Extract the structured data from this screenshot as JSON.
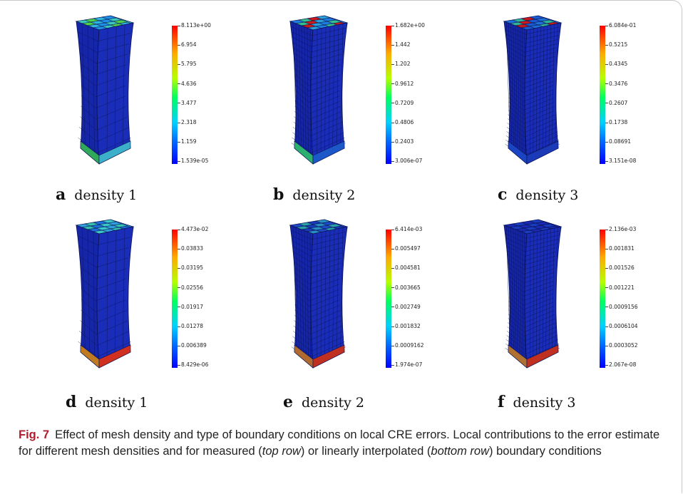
{
  "panels": [
    {
      "letter": "a",
      "label": "density 1",
      "ticks": [
        "8.113e+00",
        "6.954",
        "5.795",
        "4.636",
        "3.477",
        "2.318",
        "1.159",
        "1.539e-05"
      ],
      "grid": 4,
      "top_colors": [
        "#3ac8c0",
        "#4fd24a",
        "#2fb5e0",
        "#1f8ee6"
      ],
      "bottom_colors": [
        "#2fa85a",
        "#3bb0c8"
      ]
    },
    {
      "letter": "b",
      "label": "density 2",
      "ticks": [
        "1.682e+00",
        "1.442",
        "1.202",
        "0.9612",
        "0.7209",
        "0.4806",
        "0.2403",
        "3.006e-07"
      ],
      "grid": 8,
      "top_colors": [
        "#1e7ee0",
        "#34c090",
        "#cc1a1a",
        "#2aa0d8"
      ],
      "bottom_colors": [
        "#2bb070",
        "#1c58c8"
      ]
    },
    {
      "letter": "c",
      "label": "density 3",
      "ticks": [
        "6.084e-01",
        "0.5215",
        "0.4345",
        "0.3476",
        "0.2607",
        "0.1738",
        "0.08691",
        "3.151e-08"
      ],
      "grid": 10,
      "top_colors": [
        "#1f6fd8",
        "#2fb49a",
        "#c81a1a",
        "#1a5ad0"
      ],
      "bottom_colors": [
        "#1a44c4",
        "#1a3ab8"
      ]
    },
    {
      "letter": "d",
      "label": "density 1",
      "ticks": [
        "4.473e-02",
        "0.03833",
        "0.03195",
        "0.02556",
        "0.01917",
        "0.01278",
        "0.006389",
        "8.429e-06"
      ],
      "grid": 4,
      "top_colors": [
        "#2f9fe0",
        "#35c0b0",
        "#1d6fdc",
        "#3ac8c8"
      ],
      "bottom_colors": [
        "#c07a20",
        "#d03020"
      ]
    },
    {
      "letter": "e",
      "label": "density 2",
      "ticks": [
        "6.414e-03",
        "0.005497",
        "0.004581",
        "0.003665",
        "0.002749",
        "0.001832",
        "0.0009162",
        "1.974e-07"
      ],
      "grid": 8,
      "top_colors": [
        "#1e4ac8",
        "#2aa0a8",
        "#1a3ab8",
        "#2890c0"
      ],
      "bottom_colors": [
        "#b06a30",
        "#c03020"
      ]
    },
    {
      "letter": "f",
      "label": "density 3",
      "ticks": [
        "2.136e-03",
        "0.001831",
        "0.001526",
        "0.001221",
        "0.0009156",
        "0.0006104",
        "0.0003052",
        "2.067e-08"
      ],
      "grid": 10,
      "top_colors": [
        "#1a2ab0",
        "#1a3cbf",
        "#1a2ab0",
        "#1a3cbf"
      ],
      "bottom_colors": [
        "#b07030",
        "#c03020"
      ]
    }
  ],
  "caption": {
    "fig": "Fig. 7",
    "text_1": "Effect of mesh density and type of boundary conditions on local CRE errors. Local contributions to the error estimate for different mesh densities and for measured (",
    "em_1": "top row",
    "text_2": ") or linearly interpolated (",
    "em_2": "bottom row",
    "text_3": ") boundary conditions"
  },
  "colors": {
    "mesh_base": "#1626a8",
    "mesh_line": "#0a1250",
    "caption_fig": "#b01c2e"
  }
}
